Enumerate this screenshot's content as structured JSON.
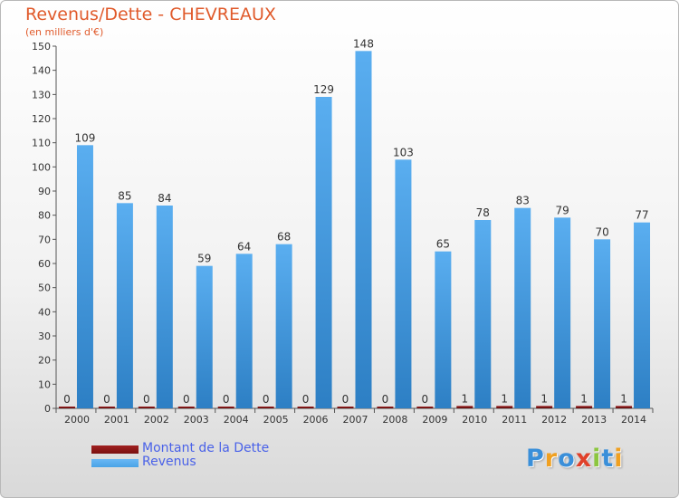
{
  "chart_data": {
    "type": "bar",
    "title": "Revenus/Dette - CHEVREAUX",
    "subtitle": "(en milliers d'€)",
    "categories": [
      "2000",
      "2001",
      "2002",
      "2003",
      "2004",
      "2005",
      "2006",
      "2007",
      "2008",
      "2009",
      "2010",
      "2011",
      "2012",
      "2013",
      "2014"
    ],
    "series": [
      {
        "name": "Montant de la Dette",
        "color": "#7a1010",
        "values": [
          0,
          0,
          0,
          0,
          0,
          0,
          0,
          0,
          0,
          0,
          1,
          1,
          1,
          1,
          1
        ]
      },
      {
        "name": "Revenus",
        "color": "#4aa3e6",
        "values": [
          109,
          85,
          84,
          59,
          64,
          68,
          129,
          148,
          103,
          65,
          78,
          83,
          79,
          70,
          77
        ]
      }
    ],
    "ylim": [
      0,
      150
    ],
    "yticks": [
      0,
      10,
      20,
      30,
      40,
      50,
      60,
      70,
      80,
      90,
      100,
      110,
      120,
      130,
      140,
      150
    ],
    "grid": false,
    "legend": "bottom-left"
  },
  "logo": {
    "letters": [
      {
        "ch": "P",
        "color": "#3a8fd9"
      },
      {
        "ch": "r",
        "color": "#f0a020"
      },
      {
        "ch": "o",
        "color": "#3a8fd9"
      },
      {
        "ch": "x",
        "color": "#e0402a"
      },
      {
        "ch": "i",
        "color": "#8cc63f"
      },
      {
        "ch": "t",
        "color": "#3a8fd9"
      },
      {
        "ch": "i",
        "color": "#f0a020"
      }
    ]
  }
}
